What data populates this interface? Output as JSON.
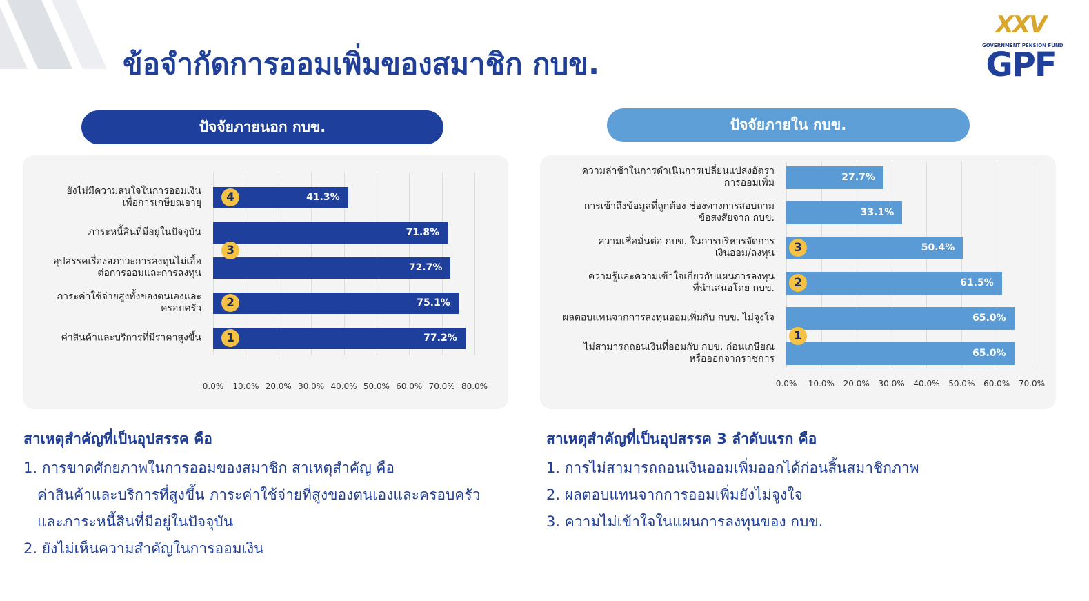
{
  "title": "ข้อจำกัดการออมเพิ่มของสมาชิก กบข.",
  "logo": {
    "mark": "XXV",
    "tagline": "GOVERNMENT PENSION FUND",
    "name": "GPF"
  },
  "chart_data": [
    {
      "type": "bar",
      "orientation": "horizontal",
      "title": "ปัจจัยภายนอก กบข.",
      "color": "#1f3f9c",
      "title_color": "#1e3f9c",
      "categories": [
        "ยังไม่มีความสนใจในการออมเงิน\nเพื่อการเกษียณอายุ",
        "ภาระหนี้สินที่มีอยู่ในปัจจุบัน",
        "อุปสรรคเรื่องสภาวะการลงทุนไม่เอื้อ\nต่อการออมและการลงทุน",
        "ภาระค่าใช้จ่ายสูงทั้งของตนเองและ\nครอบครัว",
        "ค่าสินค้าและบริการที่มีราคาสูงขึ้น"
      ],
      "values": [
        41.3,
        71.8,
        72.7,
        75.1,
        77.2
      ],
      "value_labels": [
        "41.3%",
        "71.8%",
        "72.7%",
        "75.1%",
        "77.2%"
      ],
      "badges": [
        4,
        3,
        2,
        1
      ],
      "xlim": [
        0,
        80
      ],
      "xticks": [
        {
          "value": 0,
          "label": "0.0%"
        },
        {
          "value": 10,
          "label": "10.0%"
        },
        {
          "value": 20,
          "label": "20.0%"
        },
        {
          "value": 30,
          "label": "30.0%"
        },
        {
          "value": 40,
          "label": "40.0%"
        },
        {
          "value": 50,
          "label": "50.0%"
        },
        {
          "value": 60,
          "label": "60.0%"
        },
        {
          "value": 70,
          "label": "70.0%"
        },
        {
          "value": 80,
          "label": "80.0%"
        }
      ],
      "grid": true
    },
    {
      "type": "bar",
      "orientation": "horizontal",
      "title": "ปัจจัยภายใน กบข.",
      "color": "#5b9bd5",
      "title_color": "#5f9fd8",
      "categories": [
        "ความล่าช้าในการดำเนินการเปลี่ยนแปลงอัตรา\nการออมเพิ่ม",
        "การเข้าถึงข้อมูลที่ถูกต้อง ช่องทางการสอบถาม\nข้อสงสัยจาก กบข.",
        "ความเชื่อมั่นต่อ กบข. ในการบริหารจัดการ\nเงินออม/ลงทุน",
        "ความรู้และความเข้าใจเกี่ยวกับแผนการลงทุน\nที่นำเสนอโดย กบข.",
        "ผลตอบแทนจากการลงทุนออมเพิ่มกับ กบข. ไม่จูงใจ",
        "ไม่สามารถถอนเงินที่ออมกับ กบข. ก่อนเกษียณ\nหรือออกจากราชการ"
      ],
      "values": [
        27.7,
        33.1,
        50.4,
        61.5,
        65.0,
        65.0
      ],
      "value_labels": [
        "27.7%",
        "33.1%",
        "50.4%",
        "61.5%",
        "65.0%",
        "65.0%"
      ],
      "badges": [
        3,
        2,
        1
      ],
      "xlim": [
        0,
        70
      ],
      "xticks": [
        {
          "value": 0,
          "label": "0.0%"
        },
        {
          "value": 10,
          "label": "10.0%"
        },
        {
          "value": 20,
          "label": "20.0%"
        },
        {
          "value": 30,
          "label": "30.0%"
        },
        {
          "value": 40,
          "label": "40.0%"
        },
        {
          "value": 50,
          "label": "50.0%"
        },
        {
          "value": 60,
          "label": "60.0%"
        },
        {
          "value": 70,
          "label": "70.0%"
        }
      ],
      "grid": true
    }
  ],
  "notes": [
    {
      "heading": "สาเหตุสำคัญที่เป็นอุปสรรค คือ",
      "items": [
        "1. การขาดศักยภาพในการออมของสมาชิก สาเหตุสำคัญ คือ\nค่าสินค้าและบริการที่สูงขึ้น ภาระค่าใช้จ่ายที่สูงของตนเองและครอบครัว\nและภาระหนี้สินที่มีอยู่ในปัจจุบัน",
        "2. ยังไม่เห็นความสำคัญในการออมเงิน"
      ]
    },
    {
      "heading": "สาเหตุสำคัญที่เป็นอุปสรรค 3 ลำดับแรก คือ",
      "items": [
        "1. การไม่สามารถถอนเงินออมเพิ่มออกได้ก่อนสิ้นสมาชิกภาพ",
        "2. ผลตอบแทนจากการออมเพิ่มยังไม่จูงใจ",
        "3. ความไม่เข้าใจในแผนการลงทุนของ กบข."
      ]
    }
  ]
}
